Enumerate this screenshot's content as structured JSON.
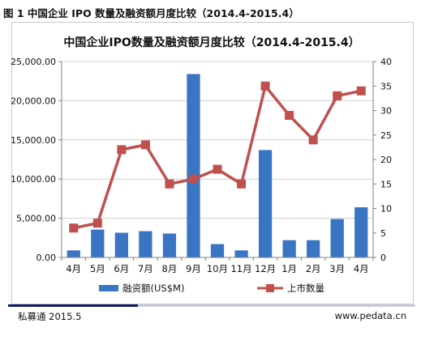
{
  "figure": {
    "caption": "图 1  中国企业 IPO 数量及融资额月度比较（2014.4-2015.4）"
  },
  "footer": {
    "source": "私募通 2015.5",
    "site": "www.pedata.cn"
  },
  "colors": {
    "bar": "#3a75c4",
    "line": "#c0504d",
    "grid": "#d0d0d0",
    "rule_dark": "#0d1a6b"
  },
  "chart_data": {
    "type": "bar",
    "title": "中国企业IPO数量及融资额月度比较（2014.4-2015.4）",
    "categories": [
      "4月",
      "5月",
      "6月",
      "7月",
      "8月",
      "9月",
      "10月",
      "11月",
      "12月",
      "1月",
      "2月",
      "3月",
      "4月"
    ],
    "series": [
      {
        "name": "融资额(US$M)",
        "type": "bar",
        "axis": "left",
        "values": [
          900,
          3550,
          3150,
          3350,
          3050,
          23400,
          1700,
          900,
          13700,
          2200,
          2200,
          4900,
          6400
        ]
      },
      {
        "name": "上市数量",
        "type": "line",
        "axis": "right",
        "values": [
          6,
          7,
          22,
          23,
          15,
          16,
          18,
          15,
          35,
          29,
          24,
          33,
          34
        ]
      }
    ],
    "y_left": {
      "min": 0,
      "max": 25000,
      "ticks": [
        0,
        5000,
        10000,
        15000,
        20000,
        25000
      ],
      "tick_labels": [
        "0.00",
        "5,000.00",
        "10,000.00",
        "15,000.00",
        "20,000.00",
        "25,000.00"
      ]
    },
    "y_right": {
      "min": 0,
      "max": 40,
      "ticks": [
        0,
        5,
        10,
        15,
        20,
        25,
        30,
        35,
        40
      ],
      "tick_labels": [
        "0",
        "5",
        "10",
        "15",
        "20",
        "25",
        "30",
        "35",
        "40"
      ]
    },
    "grid": true,
    "legend_position": "bottom"
  }
}
